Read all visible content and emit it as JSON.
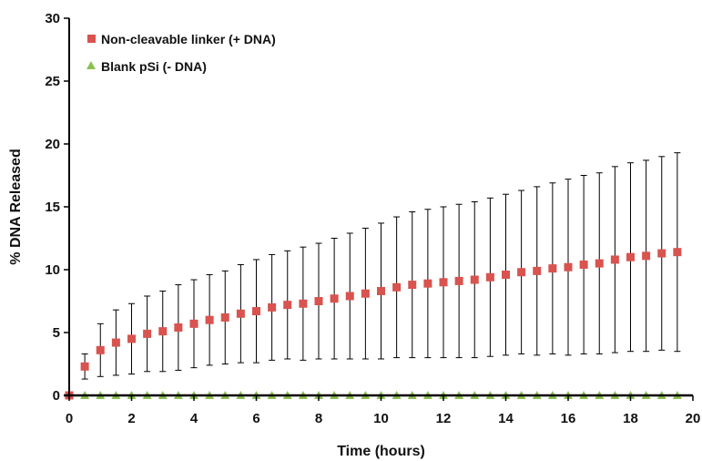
{
  "chart_data": {
    "type": "scatter",
    "title": "",
    "xlabel": "Time (hours)",
    "ylabel": "% DNA Released",
    "xlim": [
      0,
      20
    ],
    "ylim": [
      0,
      30
    ],
    "xticks": [
      0,
      2,
      4,
      6,
      8,
      10,
      12,
      14,
      16,
      18,
      20
    ],
    "yticks": [
      0,
      5,
      10,
      15,
      20,
      25,
      30
    ],
    "grid": false,
    "legend_position": "top-left",
    "series": [
      {
        "name": "Non-cleavable linker (+ DNA)",
        "marker": "square",
        "color": "#d9534f",
        "x": [
          0,
          0.5,
          1,
          1.5,
          2,
          2.5,
          3,
          3.5,
          4,
          4.5,
          5,
          5.5,
          6,
          6.5,
          7,
          7.5,
          8,
          8.5,
          9,
          9.5,
          10,
          10.5,
          11,
          11.5,
          12,
          12.5,
          13,
          13.5,
          14,
          14.5,
          15,
          15.5,
          16,
          16.5,
          17,
          17.5,
          18,
          18.5,
          19,
          19.5
        ],
        "y": [
          0,
          2.3,
          3.6,
          4.2,
          4.5,
          4.9,
          5.1,
          5.4,
          5.7,
          6.0,
          6.2,
          6.5,
          6.7,
          7.0,
          7.2,
          7.3,
          7.5,
          7.7,
          7.9,
          8.1,
          8.3,
          8.6,
          8.8,
          8.9,
          9.0,
          9.1,
          9.2,
          9.4,
          9.6,
          9.8,
          9.9,
          10.1,
          10.2,
          10.4,
          10.5,
          10.8,
          11.0,
          11.1,
          11.3,
          11.4
        ],
        "error": [
          0,
          1.0,
          2.1,
          2.6,
          2.8,
          3.0,
          3.2,
          3.4,
          3.5,
          3.6,
          3.7,
          3.9,
          4.1,
          4.2,
          4.3,
          4.5,
          4.6,
          4.8,
          5.0,
          5.2,
          5.4,
          5.6,
          5.8,
          5.9,
          6.0,
          6.1,
          6.2,
          6.3,
          6.4,
          6.5,
          6.7,
          6.8,
          7.0,
          7.1,
          7.2,
          7.4,
          7.5,
          7.6,
          7.7,
          7.9
        ]
      },
      {
        "name": "Blank pSi (- DNA)",
        "marker": "triangle",
        "color": "#8cc152",
        "x": [
          0,
          0.5,
          1,
          1.5,
          2,
          2.5,
          3,
          3.5,
          4,
          4.5,
          5,
          5.5,
          6,
          6.5,
          7,
          7.5,
          8,
          8.5,
          9,
          9.5,
          10,
          10.5,
          11,
          11.5,
          12,
          12.5,
          13,
          13.5,
          14,
          14.5,
          15,
          15.5,
          16,
          16.5,
          17,
          17.5,
          18,
          18.5,
          19,
          19.5
        ],
        "y": [
          0,
          0,
          0,
          0,
          0,
          0,
          0,
          0,
          0,
          0,
          0,
          0,
          0,
          0,
          0,
          0,
          0,
          0,
          0,
          0,
          0,
          0,
          0,
          0,
          0,
          0,
          0,
          0,
          0,
          0,
          0,
          0,
          0,
          0,
          0,
          0,
          0,
          0,
          0,
          0
        ]
      }
    ]
  }
}
